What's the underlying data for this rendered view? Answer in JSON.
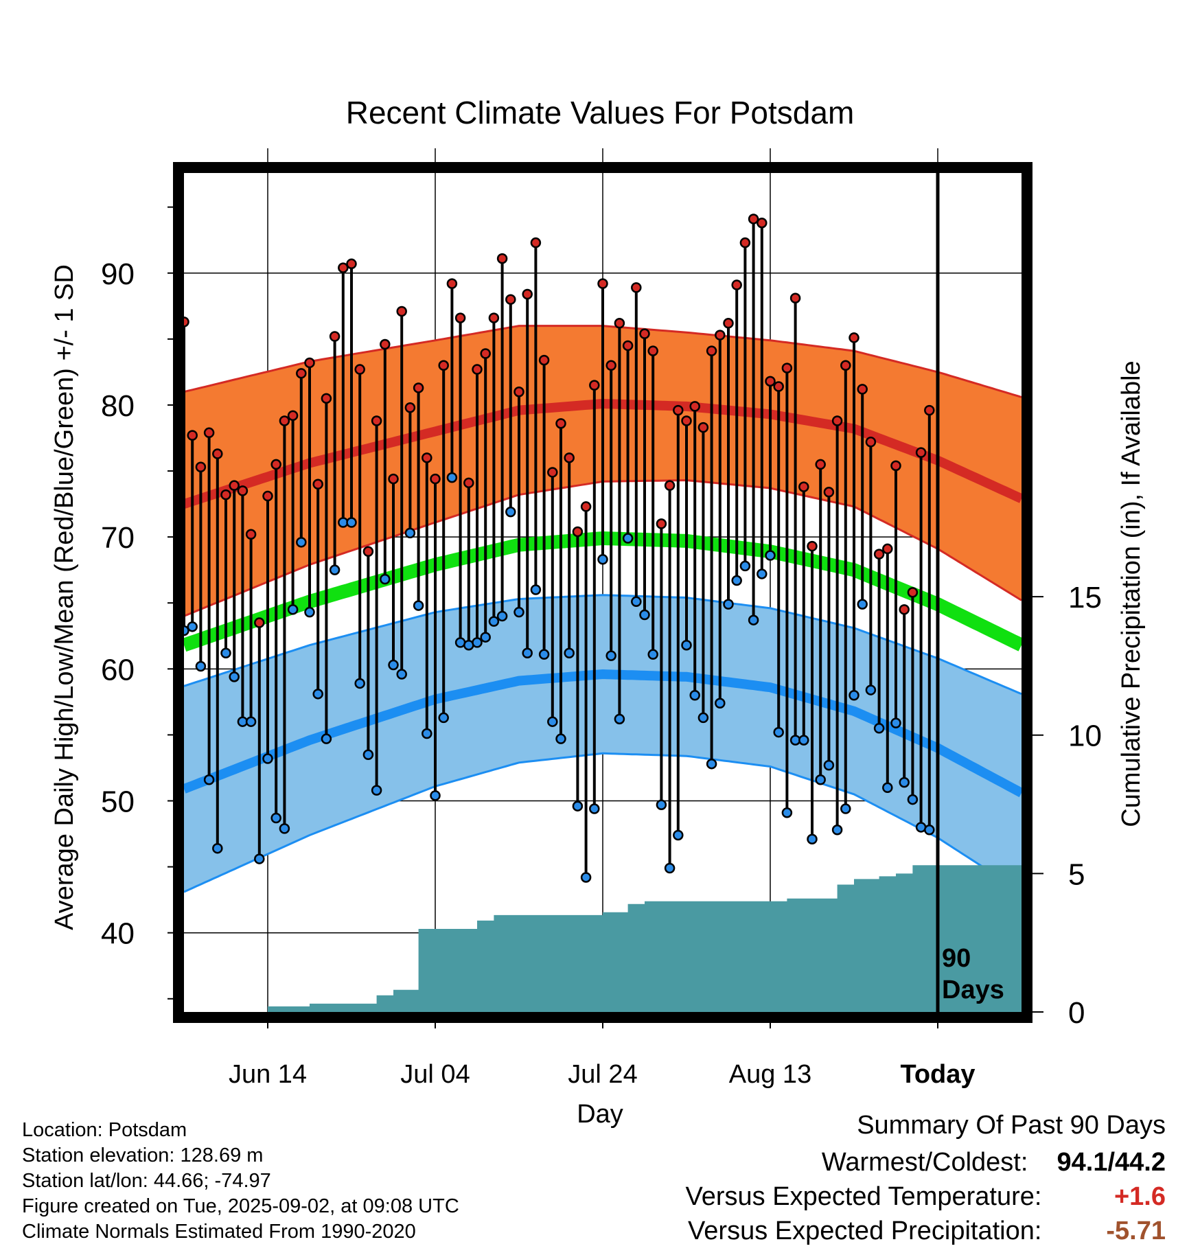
{
  "chart_data": {
    "type": "line",
    "title": "Recent Climate Values For Potsdam",
    "xlabel": "Day",
    "ylabel": "Average Daily High/Low/Mean (Red/Blue/Green) +/- 1 SD",
    "y2label": "Cumulative Precipitation (in), If Available",
    "x_tick_labels": [
      "Jun 14",
      "Jul 04",
      "Jul 24",
      "Aug 13",
      "Today"
    ],
    "y_ticks": [
      40,
      50,
      60,
      70,
      80,
      90
    ],
    "y_range": [
      34,
      98
    ],
    "y2_ticks": [
      0,
      5,
      10,
      15
    ],
    "y2_range": [
      0,
      30.5
    ],
    "x_day_range": [
      -90,
      10
    ],
    "period_label": "90 Days",
    "colors": {
      "normal_high": "#d42a24",
      "high_band": "#f47a31",
      "normal_low": "#1c8ef2",
      "low_band": "#86c1ea",
      "normal_mean": "#10e010",
      "precip": "#4a9aa2",
      "obs_high": "#d42a24",
      "obs_low": "#2b8ce8"
    },
    "normal_high": {
      "day": [
        -90,
        -75,
        -60,
        -50,
        -40,
        -30,
        -20,
        -10,
        0,
        10
      ],
      "value": [
        72.5,
        75.6,
        78.0,
        79.6,
        80.1,
        79.9,
        79.3,
        78.2,
        75.8,
        72.9
      ],
      "sd": [
        8.5,
        7.7,
        6.9,
        6.4,
        5.9,
        5.6,
        5.6,
        5.9,
        6.7,
        7.7
      ]
    },
    "normal_low": {
      "day": [
        -90,
        -75,
        -60,
        -50,
        -40,
        -30,
        -20,
        -10,
        0,
        10
      ],
      "value": [
        50.9,
        54.6,
        57.7,
        59.1,
        59.6,
        59.4,
        58.6,
        56.8,
        54.0,
        50.6
      ],
      "sd": [
        7.8,
        7.2,
        6.6,
        6.2,
        6.0,
        6.0,
        6.0,
        6.3,
        6.8,
        7.5
      ]
    },
    "normal_mean": {
      "day": [
        -90,
        -75,
        -60,
        -50,
        -40,
        -30,
        -20,
        -10,
        0,
        10
      ],
      "value": [
        61.8,
        65.1,
        67.9,
        69.4,
        69.9,
        69.7,
        68.9,
        67.5,
        64.9,
        61.8
      ]
    },
    "observed": {
      "start_day": -90,
      "highs": [
        86.3,
        77.7,
        75.3,
        77.9,
        76.3,
        73.2,
        73.9,
        73.5,
        70.2,
        63.5,
        73.1,
        75.5,
        78.8,
        79.2,
        82.4,
        83.2,
        74.0,
        80.5,
        85.2,
        90.4,
        90.7,
        82.7,
        68.9,
        78.8,
        84.6,
        74.4,
        87.1,
        79.8,
        81.3,
        76.0,
        74.4,
        83.0,
        89.2,
        86.6,
        74.1,
        82.7,
        83.9,
        86.6,
        91.1,
        88.0,
        81.0,
        88.4,
        92.3,
        83.4,
        74.9,
        78.6,
        76.0,
        70.4,
        72.3,
        81.5,
        89.2,
        83.0,
        86.2,
        84.5,
        88.9,
        85.4,
        84.1,
        71.0,
        73.9,
        79.6,
        78.8,
        79.9,
        78.3,
        84.1,
        85.3,
        86.2,
        89.1,
        92.3,
        94.1,
        93.8,
        81.8,
        81.4,
        82.8,
        88.1,
        73.8,
        69.3,
        75.5,
        73.4,
        78.8,
        83.0,
        85.1,
        81.2,
        77.2,
        68.7,
        69.1,
        75.4,
        64.5,
        65.8,
        76.4,
        79.6
      ],
      "lows": [
        62.9,
        63.2,
        60.2,
        51.6,
        46.4,
        61.2,
        59.4,
        56.0,
        56.0,
        45.6,
        53.2,
        48.7,
        47.9,
        64.5,
        69.6,
        64.3,
        58.1,
        54.7,
        67.5,
        71.1,
        71.1,
        58.9,
        53.5,
        50.8,
        66.8,
        60.3,
        59.6,
        70.3,
        64.8,
        55.1,
        50.4,
        56.3,
        74.5,
        62.0,
        61.8,
        62.0,
        62.4,
        63.6,
        64.0,
        71.9,
        64.3,
        61.2,
        66.0,
        61.1,
        56.0,
        54.7,
        61.2,
        49.6,
        44.2,
        49.4,
        68.3,
        61.0,
        56.2,
        69.9,
        65.1,
        64.1,
        61.1,
        49.7,
        44.9,
        47.4,
        61.8,
        58.0,
        56.3,
        52.8,
        57.4,
        64.9,
        66.7,
        67.8,
        63.7,
        67.2,
        68.6,
        55.2,
        49.1,
        54.6,
        54.6,
        47.1,
        51.6,
        52.7,
        47.8,
        49.4,
        58.0,
        64.9,
        58.4,
        55.5,
        51.0,
        55.9,
        51.4,
        50.1,
        48.0,
        47.8
      ]
    },
    "precip_cumulative": {
      "day": [
        -90,
        -85,
        -80,
        -75,
        -70,
        -67,
        -65,
        -64,
        -62,
        -60,
        -57,
        -55,
        -53,
        -50,
        -45,
        -40,
        -37,
        -35,
        -30,
        -25,
        -20,
        -18,
        -15,
        -12,
        -10,
        -7,
        -5,
        -3,
        0,
        10
      ],
      "value": [
        0,
        0,
        0.2,
        0.3,
        0.3,
        0.6,
        0.8,
        0.8,
        3.0,
        3.0,
        3.0,
        3.3,
        3.5,
        3.5,
        3.5,
        3.6,
        3.9,
        4.0,
        4.0,
        4.0,
        4.0,
        4.1,
        4.1,
        4.6,
        4.8,
        4.9,
        5.0,
        5.3,
        5.3,
        5.3
      ]
    }
  },
  "footer": {
    "location": "Location: Potsdam",
    "elevation": "Station elevation: 128.69 m",
    "latlon": "Station lat/lon: 44.66; -74.97",
    "created": "Figure created on Tue, 2025-09-02, at 09:08 UTC",
    "normals": "Climate Normals Estimated From 1990-2020"
  },
  "summary": {
    "title": "Summary Of Past 90 Days",
    "warmest_coldest_label": "Warmest/Coldest:",
    "warmest_coldest_value": "94.1/44.2",
    "temp_label": "Versus Expected Temperature:",
    "temp_value": "+1.6",
    "temp_color": "#d42a24",
    "precip_label": "Versus Expected Precipitation:",
    "precip_value": "-5.71",
    "precip_color": "#a0522d"
  }
}
